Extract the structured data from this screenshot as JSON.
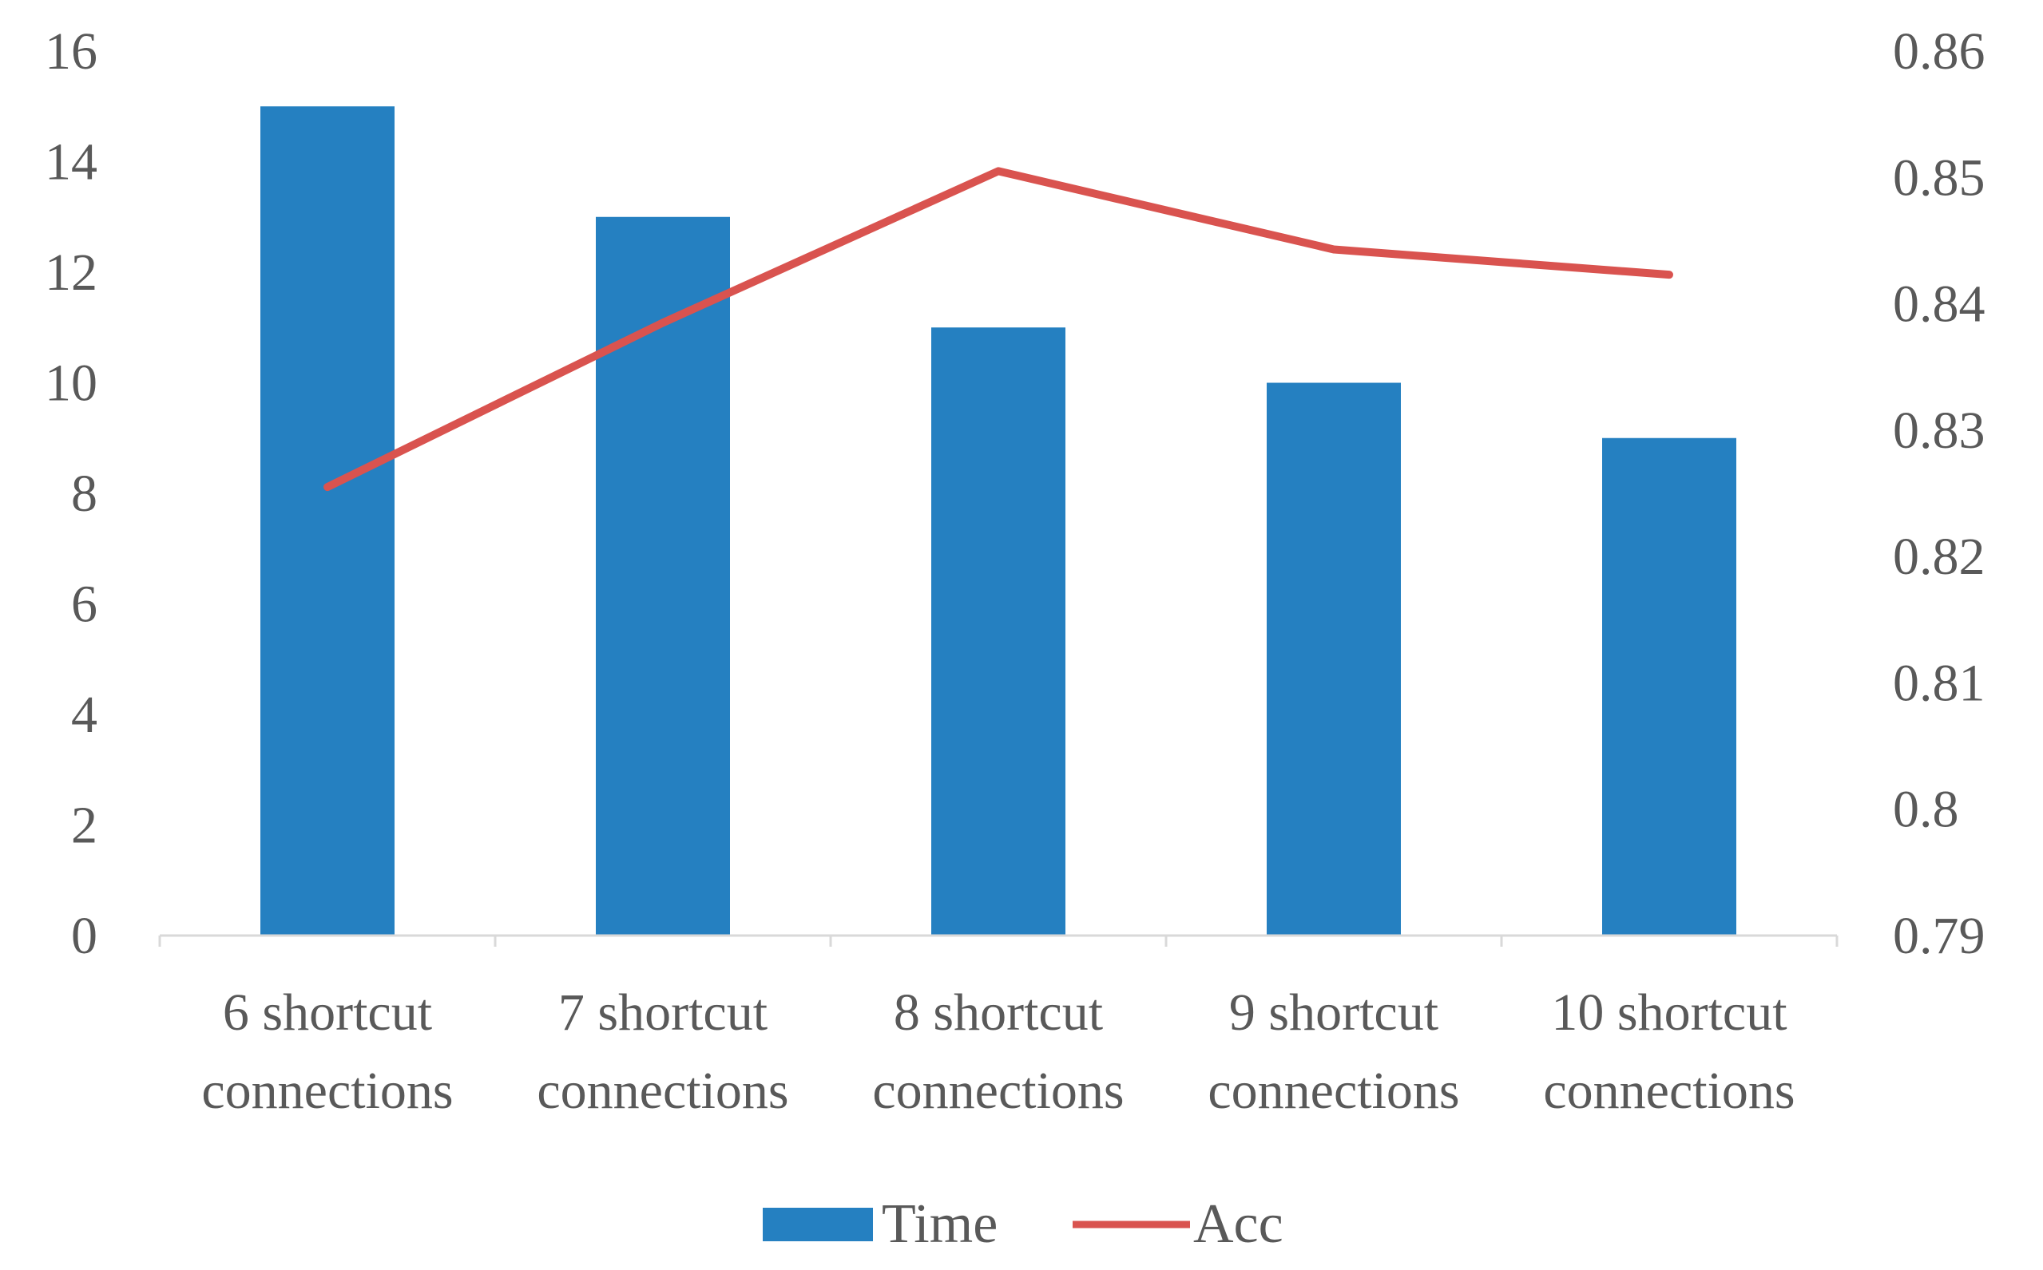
{
  "chart_data": {
    "type": "bar",
    "categories": [
      [
        "6 shortcut",
        "connections"
      ],
      [
        "7 shortcut",
        "connections"
      ],
      [
        "8 shortcut",
        "connections"
      ],
      [
        "9 shortcut",
        "connections"
      ],
      [
        "10 shortcut",
        "connections"
      ]
    ],
    "series": [
      {
        "name": "Time",
        "type": "bar",
        "axis": "left",
        "color": "#2580C1",
        "values": [
          15,
          13,
          11,
          10,
          9
        ]
      },
      {
        "name": "Acc",
        "type": "line",
        "axis": "right",
        "color": "#D9534F",
        "values": [
          0.8255,
          0.8385,
          0.8505,
          0.8443,
          0.8423
        ]
      }
    ],
    "y_left": {
      "min": 0,
      "max": 16,
      "ticks": [
        "0",
        "2",
        "4",
        "6",
        "8",
        "10",
        "12",
        "14",
        "16"
      ]
    },
    "y_right": {
      "min": 0.79,
      "max": 0.86,
      "ticks": [
        "0.79",
        "0.8",
        "0.81",
        "0.82",
        "0.83",
        "0.84",
        "0.85",
        "0.86"
      ]
    },
    "grid": false,
    "legend_position": "bottom"
  }
}
